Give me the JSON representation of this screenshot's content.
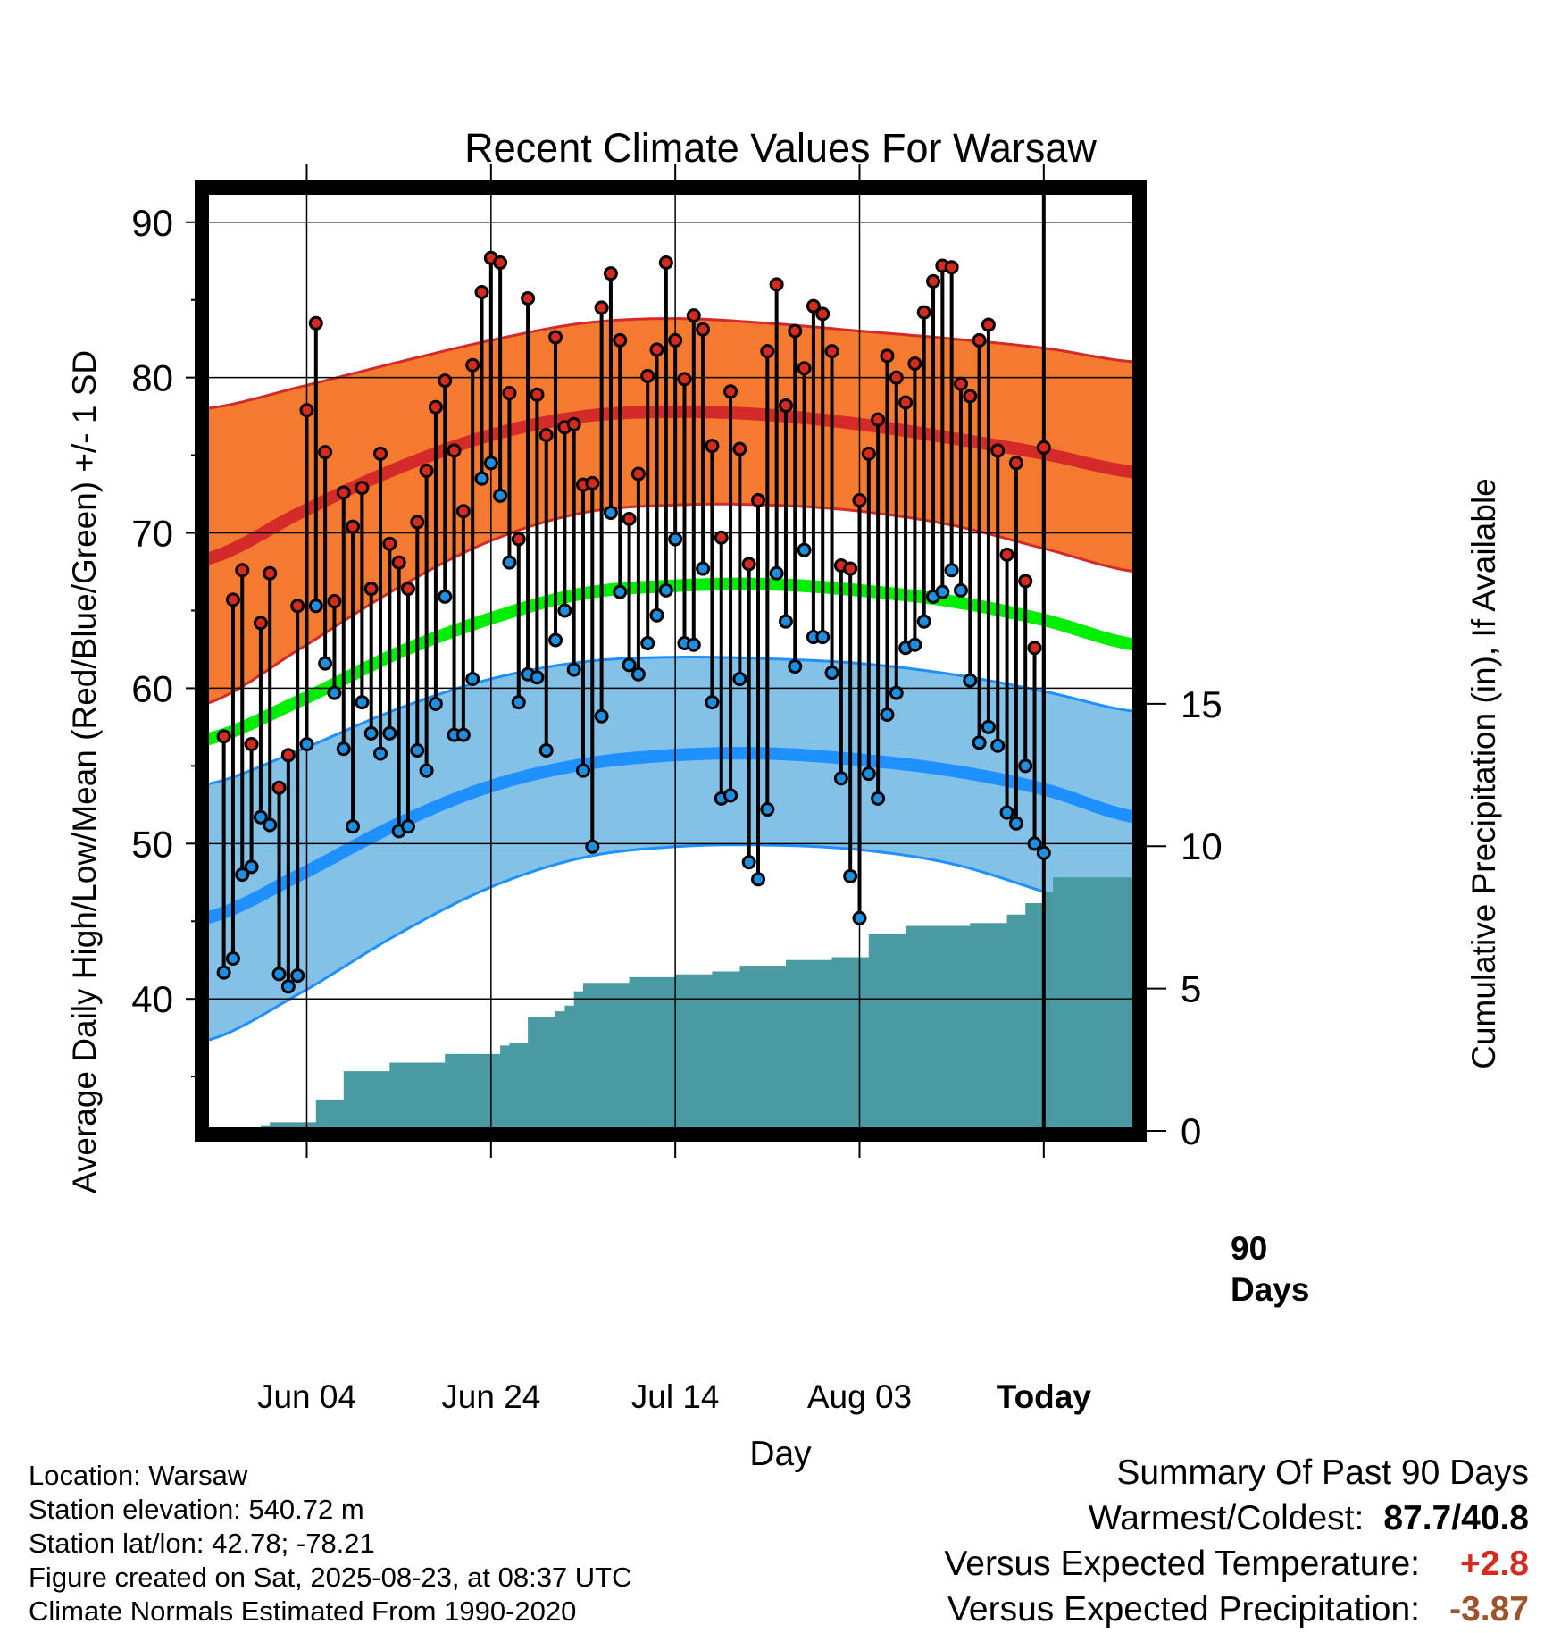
{
  "chart_data": {
    "type": "line",
    "title": "Recent Climate Values For Warsaw",
    "xlabel": "Day",
    "ylabel": "Average Daily High/Low/Mean (Red/Blue/Green) +/- 1 SD",
    "y2label": "Cumulative Precipitation (in), If Available",
    "x_ticks": [
      "Jun 04",
      "Jun 24",
      "Jul 14",
      "Aug 03",
      "Today"
    ],
    "x_tick_day_index": [
      12,
      32,
      52,
      72,
      92
    ],
    "today_day_index": 92,
    "window_label_line1": "90",
    "window_label_line2": "Days",
    "xlim_days": [
      1,
      102
    ],
    "ylim": [
      31.5,
      92
    ],
    "y_ticks": [
      40,
      50,
      60,
      70,
      80,
      90
    ],
    "y2lim": [
      0,
      33
    ],
    "y2_ticks": [
      0,
      5,
      10,
      15
    ],
    "grid": true,
    "colors": {
      "high_band": "#f47a30",
      "high_mean": "#d42a2a",
      "low_band": "#84c1e6",
      "low_mean": "#1e90ff",
      "mean_line": "#00ee00",
      "precip": "#4a9aa3",
      "high_point": "#d62a1e",
      "low_point": "#1e8fe0"
    },
    "normals": {
      "day_index": [
        1,
        12,
        22,
        32,
        42,
        52,
        62,
        72,
        82,
        92,
        102
      ],
      "high_mean": [
        68.3,
        71.5,
        74.2,
        76.3,
        77.5,
        77.8,
        77.6,
        77.0,
        76.1,
        75.1,
        73.9
      ],
      "high_upper": [
        78.0,
        79.5,
        81.0,
        82.4,
        83.5,
        83.8,
        83.5,
        83.0,
        82.5,
        81.9,
        81.0
      ],
      "high_lower": [
        59.0,
        62.8,
        66.5,
        69.5,
        71.3,
        71.8,
        71.8,
        71.4,
        70.5,
        69.0,
        67.5
      ],
      "mean": [
        56.7,
        59.4,
        62.3,
        64.5,
        66.1,
        66.6,
        66.7,
        66.3,
        65.6,
        64.4,
        62.8
      ],
      "low_mean": [
        45.2,
        48.2,
        51.3,
        53.7,
        55.1,
        55.7,
        55.8,
        55.4,
        54.7,
        53.5,
        51.7
      ],
      "low_upper": [
        53.8,
        56.2,
        58.7,
        60.6,
        61.7,
        62.0,
        61.9,
        61.6,
        60.9,
        59.8,
        58.5
      ],
      "low_lower": [
        37.3,
        40.6,
        44.2,
        47.2,
        49.1,
        49.8,
        49.9,
        49.6,
        48.7,
        46.9,
        45.0
      ]
    },
    "series": [
      {
        "name": "High",
        "values": [
          56.9,
          65.7,
          67.6,
          56.4,
          64.2,
          67.4,
          53.6,
          55.7,
          65.3,
          77.9,
          83.5,
          75.2,
          65.6,
          72.6,
          70.4,
          72.9,
          66.4,
          75.1,
          69.3,
          68.1,
          66.4,
          70.7,
          74.0,
          78.1,
          79.8,
          75.3,
          71.4,
          80.8,
          85.5,
          87.7,
          87.4,
          79.0,
          69.6,
          85.1,
          78.9,
          76.3,
          82.6,
          76.8,
          77.0,
          73.1,
          73.2,
          84.5,
          86.7,
          82.4,
          70.9,
          73.8,
          80.1,
          81.8,
          87.4,
          82.4,
          79.9,
          84.0,
          83.1,
          75.6,
          69.7,
          79.1,
          75.4,
          68.0,
          72.1,
          81.7,
          86.0,
          78.2,
          83.0,
          80.6,
          84.6,
          84.1,
          81.7,
          67.9,
          67.7,
          72.1,
          75.1,
          77.3,
          81.4,
          80.0,
          78.4,
          80.9,
          84.2,
          86.2,
          87.2,
          87.1,
          79.6,
          78.8,
          82.4,
          83.4,
          75.3,
          68.6,
          74.5,
          66.9,
          62.6,
          75.5
        ]
      },
      {
        "name": "Low",
        "values": [
          41.7,
          42.6,
          48.0,
          48.5,
          51.7,
          51.2,
          41.6,
          40.8,
          41.5,
          56.4,
          65.3,
          61.6,
          59.7,
          56.1,
          51.1,
          59.1,
          57.1,
          55.8,
          57.1,
          50.8,
          51.1,
          56.0,
          54.7,
          59.0,
          65.9,
          57.0,
          57.0,
          60.6,
          73.5,
          74.5,
          72.4,
          68.1,
          59.1,
          60.9,
          60.7,
          56.0,
          63.1,
          65.0,
          61.2,
          54.7,
          49.8,
          58.2,
          71.3,
          66.2,
          61.5,
          60.9,
          62.9,
          64.7,
          66.3,
          69.6,
          62.9,
          62.8,
          67.7,
          59.1,
          52.9,
          53.1,
          60.6,
          48.8,
          47.7,
          52.2,
          67.4,
          64.3,
          61.4,
          68.9,
          63.3,
          63.3,
          61.0,
          54.2,
          47.9,
          45.2,
          54.5,
          52.9,
          58.3,
          59.7,
          62.6,
          62.8,
          64.3,
          65.9,
          66.2,
          67.6,
          66.3,
          60.5,
          56.5,
          57.5,
          56.3,
          52.0,
          51.3,
          55.0,
          50.0,
          49.4
        ]
      }
    ],
    "precip_cumulative": [
      0.0,
      0.0,
      0.0,
      0.0,
      0.1,
      0.1,
      0.2,
      0.3,
      0.3,
      0.3,
      0.3,
      0.3,
      1.1,
      1.1,
      1.1,
      2.1,
      2.1,
      2.1,
      2.1,
      2.1,
      2.4,
      2.4,
      2.4,
      2.4,
      2.4,
      2.4,
      2.7,
      2.7,
      2.7,
      2.7,
      2.7,
      2.7,
      3.0,
      3.1,
      3.1,
      4.0,
      4.0,
      4.0,
      4.2,
      4.4,
      4.9,
      5.2,
      5.2,
      5.2,
      5.2,
      5.2,
      5.4,
      5.4,
      5.4,
      5.4,
      5.4,
      5.5,
      5.5,
      5.5,
      5.5,
      5.6,
      5.6,
      5.6,
      5.8,
      5.8,
      5.8,
      5.8,
      5.8,
      6.0,
      6.0,
      6.0,
      6.0,
      6.0,
      6.1,
      6.1,
      6.1,
      6.1,
      6.9,
      6.9,
      6.9,
      6.9,
      7.2,
      7.2,
      7.2,
      7.2,
      7.2,
      7.2,
      7.2,
      7.3,
      7.3,
      7.3,
      7.3,
      7.6,
      7.6,
      8.0,
      8.0,
      8.4,
      8.9,
      8.9,
      8.9,
      8.9,
      8.9,
      8.9,
      8.9,
      8.9,
      8.9
    ]
  },
  "footer": {
    "location": "Location: Warsaw",
    "elevation": "Station elevation: 540.72 m",
    "latlon": "Station lat/lon: 42.78; -78.21",
    "created": "Figure created on Sat, 2025-08-23, at 08:37 UTC",
    "normals": "Climate Normals Estimated From 1990-2020"
  },
  "summary": {
    "heading": "Summary Of Past 90 Days",
    "warm_label": "Warmest/Coldest:",
    "warm_value": "87.7/40.8",
    "temp_label": "Versus Expected Temperature:",
    "temp_value": "+2.8",
    "temp_color": "#d62a1e",
    "prec_label": "Versus Expected Precipitation:",
    "prec_value": "-3.87",
    "prec_color": "#a0522d"
  }
}
